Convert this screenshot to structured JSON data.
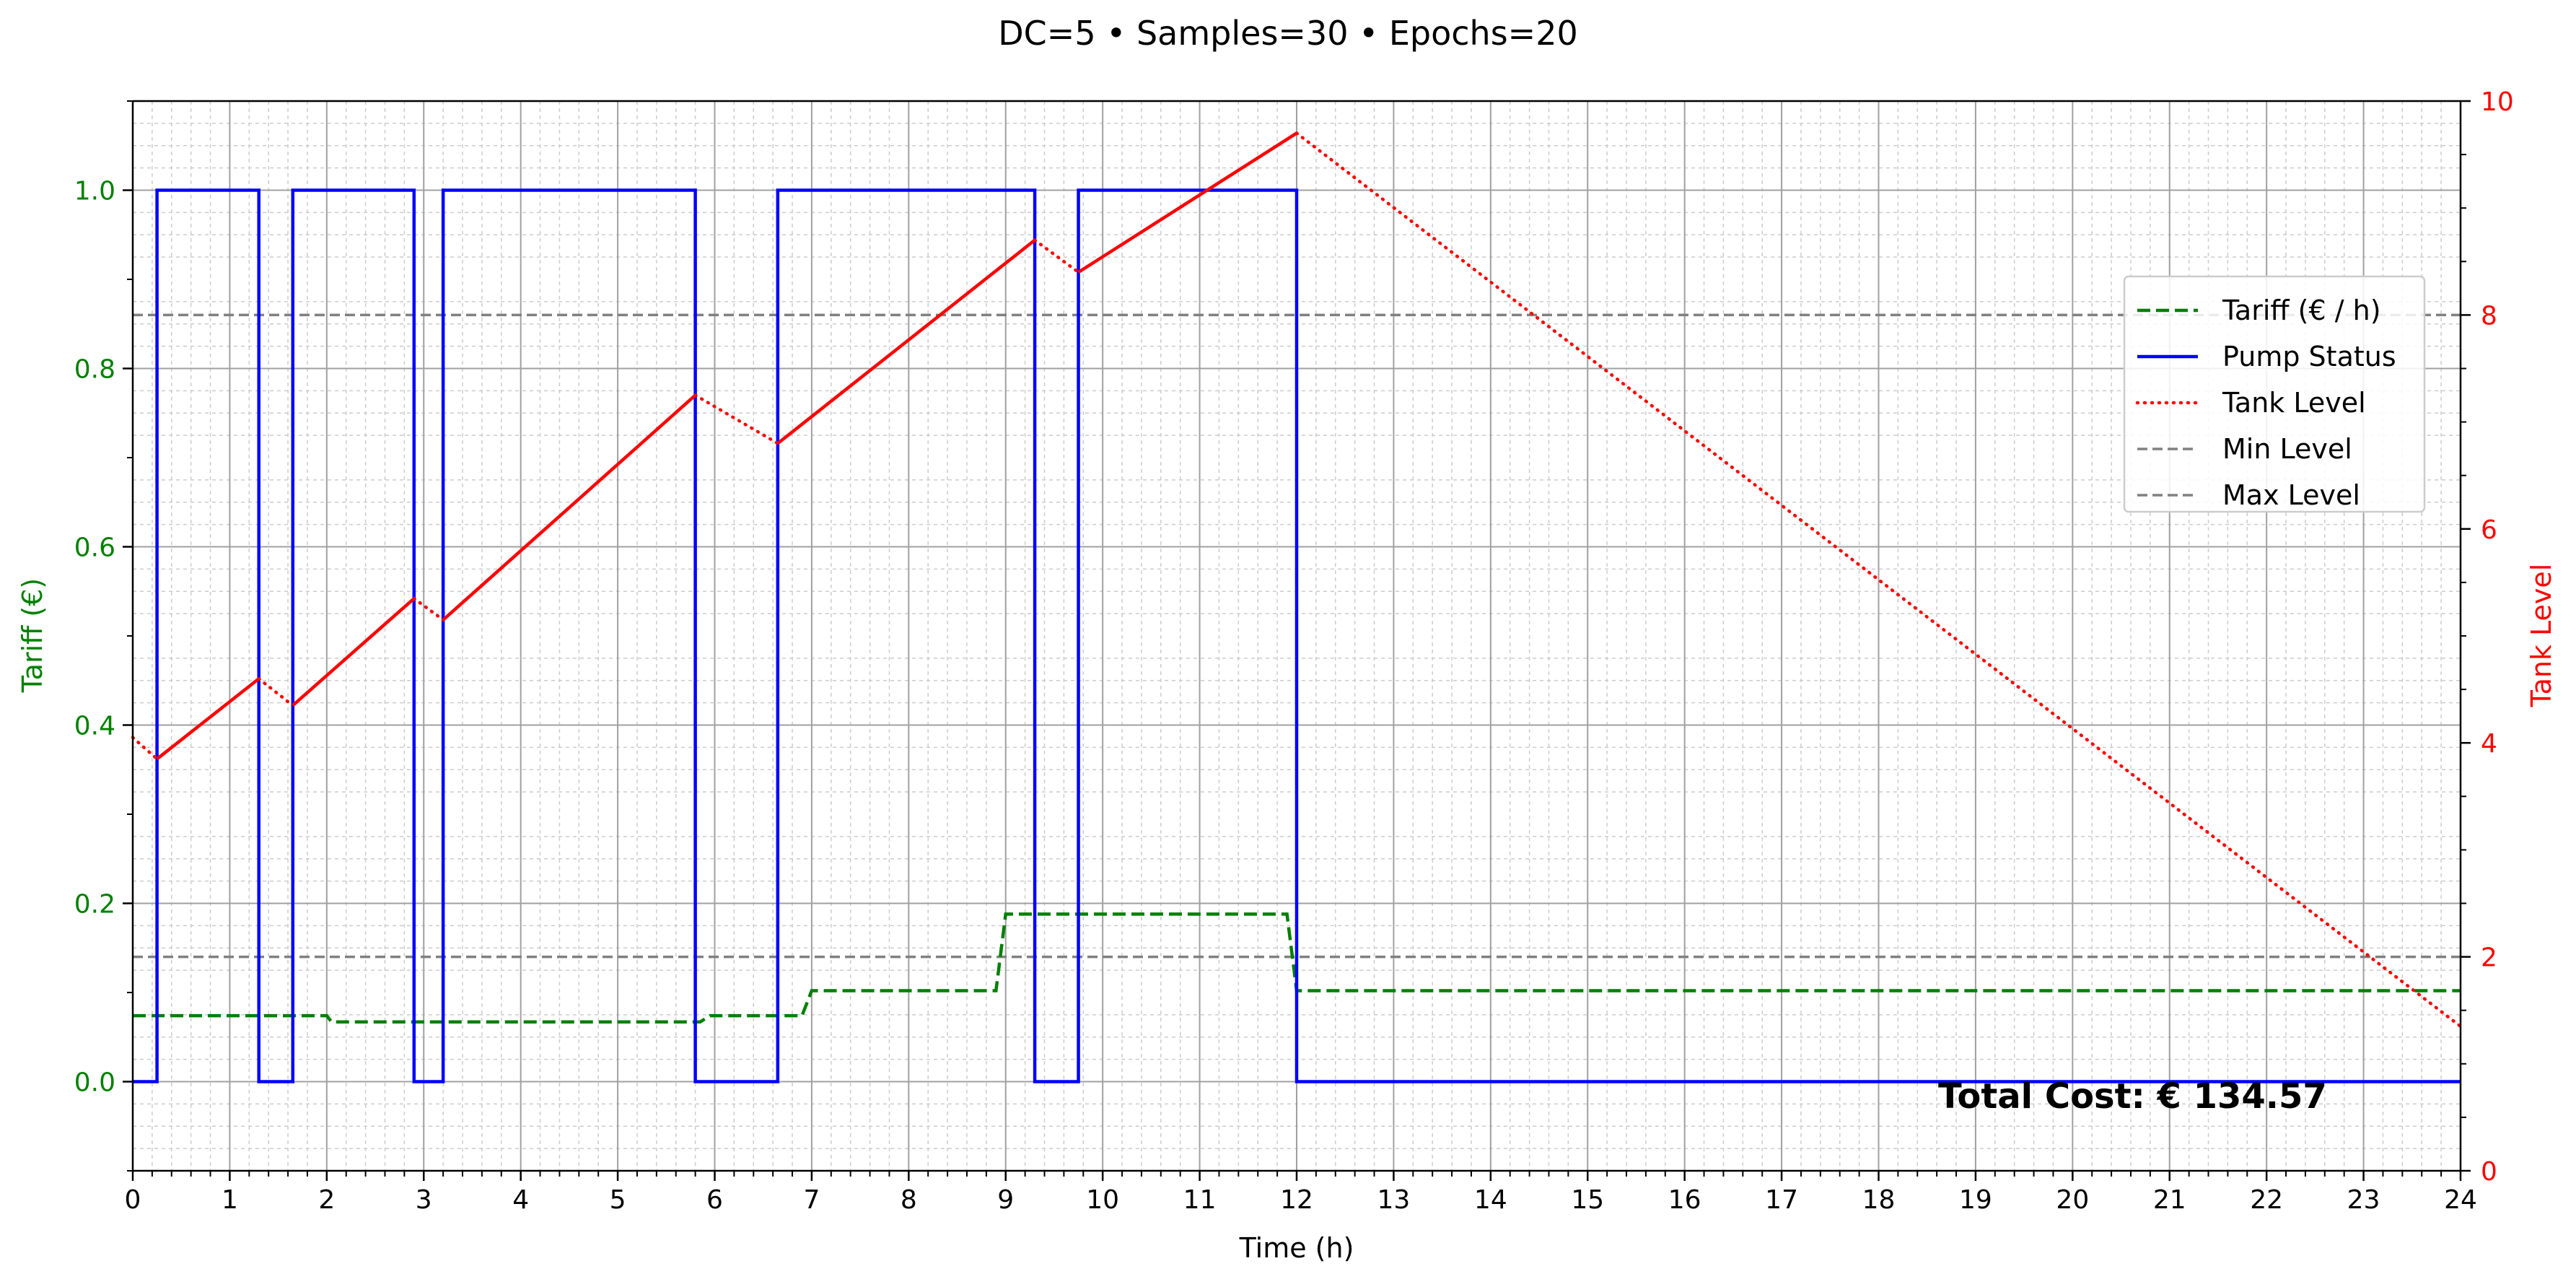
{
  "chart_data": {
    "type": "line",
    "title": "DC=5 • Samples=30 • Epochs=20",
    "xlabel": "Time (h)",
    "ylabel_left": "Tariff (€)",
    "ylabel_right": "Tank Level",
    "xlim": [
      0,
      24
    ],
    "ylim_left": [
      -0.1,
      1.1
    ],
    "ylim_right": [
      0,
      10
    ],
    "x_ticks": [
      "0",
      "1",
      "2",
      "3",
      "4",
      "5",
      "6",
      "7",
      "8",
      "9",
      "10",
      "11",
      "12",
      "13",
      "14",
      "15",
      "16",
      "17",
      "18",
      "19",
      "20",
      "21",
      "22",
      "23",
      "24"
    ],
    "y_left_ticks": [
      "0.0",
      "0.2",
      "0.4",
      "0.6",
      "0.8",
      "1.0"
    ],
    "y_right_ticks": [
      "0",
      "2",
      "4",
      "6",
      "8",
      "10"
    ],
    "grid": true,
    "legend_position": "upper-right",
    "annotation": "Total Cost: € 134.57",
    "colors": {
      "tariff": "#008000",
      "pump": "#0000ff",
      "tank": "#ff0000",
      "levels": "#808080",
      "left_axis": "#008000",
      "right_axis": "#ff0000"
    },
    "series": [
      {
        "name": "Tariff (€ / h)",
        "axis": "left",
        "style": "dashed",
        "x": [
          0,
          2,
          2.05,
          5.85,
          5.95,
          6.9,
          7.0,
          8.9,
          9.0,
          11.9,
          12.0,
          24
        ],
        "y": [
          0.074,
          0.074,
          0.067,
          0.067,
          0.074,
          0.074,
          0.102,
          0.102,
          0.188,
          0.188,
          0.102,
          0.102
        ]
      },
      {
        "name": "Pump Status",
        "axis": "left",
        "style": "step",
        "x": [
          0,
          0.25,
          1.3,
          1.65,
          2.9,
          3.2,
          5.8,
          6.65,
          9.3,
          9.75,
          12.0,
          24
        ],
        "y": [
          0,
          1,
          0,
          1,
          0,
          1,
          0,
          1,
          0,
          1,
          0,
          0
        ]
      },
      {
        "name": "Tank Level",
        "axis": "right",
        "style": "mixed",
        "x": [
          0,
          0.25,
          1.3,
          1.65,
          2.9,
          3.2,
          5.8,
          6.65,
          9.3,
          9.75,
          12.0,
          24
        ],
        "y": [
          4.05,
          3.85,
          4.6,
          4.35,
          5.35,
          5.15,
          7.25,
          6.8,
          8.7,
          8.4,
          9.7,
          1.35
        ]
      },
      {
        "name": "Min Level",
        "axis": "right",
        "style": "dashed",
        "value": 2
      },
      {
        "name": "Max Level",
        "axis": "right",
        "style": "dashed",
        "value": 8
      }
    ]
  }
}
